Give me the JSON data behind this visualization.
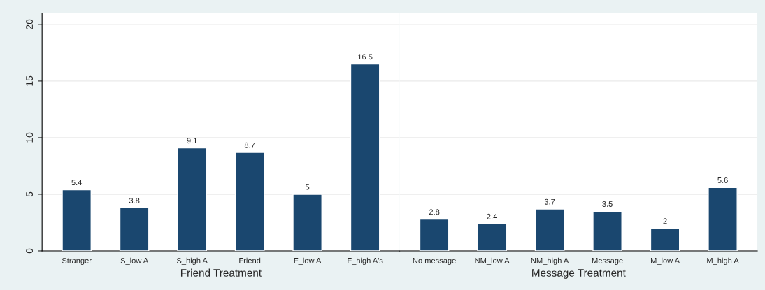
{
  "chart_data": [
    {
      "type": "bar",
      "xlabel": "Friend Treatment",
      "categories": [
        "Stranger",
        "S_low A",
        "S_high A",
        "Friend",
        "F_low A",
        "F_high A's"
      ],
      "values": [
        5.4,
        3.8,
        9.1,
        8.7,
        5,
        16.5
      ],
      "color": "#1a476f",
      "ylim": [
        0,
        21
      ],
      "yticks": [
        0,
        5,
        10,
        15,
        20
      ],
      "grid": "y",
      "data_labels": true
    },
    {
      "type": "bar",
      "xlabel": "Message Treatment",
      "categories": [
        "No message",
        "NM_low A",
        "NM_high A",
        "Message",
        "M_low A",
        "M_high A"
      ],
      "values": [
        2.8,
        2.4,
        3.7,
        3.5,
        2,
        5.6
      ],
      "color": "#1a476f",
      "ylim": [
        0,
        21
      ],
      "yticks": [
        0,
        5,
        10,
        15,
        20
      ],
      "grid": "y",
      "data_labels": true,
      "tick_labels": "x"
    }
  ]
}
